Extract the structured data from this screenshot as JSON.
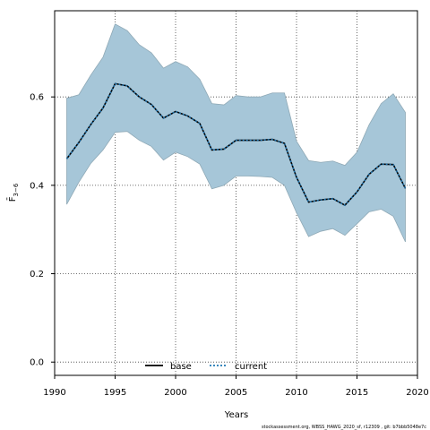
{
  "chart_data": {
    "type": "area",
    "xlabel": "Years",
    "ylabel": "F̄",
    "ylabel_subscript": "3−6",
    "xlim": [
      1990,
      2020
    ],
    "ylim": [
      -0.03,
      0.795
    ],
    "xticks": [
      1990,
      1995,
      2000,
      2005,
      2010,
      2015,
      2020
    ],
    "yticks": [
      0.0,
      0.2,
      0.4,
      0.6
    ],
    "ytick_labels": [
      "0.0",
      "0.2",
      "0.4",
      "0.6"
    ],
    "grid": true,
    "legend_position": "bottom",
    "x": [
      1991,
      1992,
      1993,
      1994,
      1995,
      1996,
      1997,
      1998,
      1999,
      2000,
      2001,
      2002,
      2003,
      2004,
      2005,
      2006,
      2007,
      2008,
      2009,
      2010,
      2011,
      2012,
      2013,
      2014,
      2015,
      2016,
      2017,
      2018,
      2019
    ],
    "band": {
      "upper": [
        0.597,
        0.605,
        0.65,
        0.69,
        0.765,
        0.75,
        0.718,
        0.7,
        0.665,
        0.68,
        0.668,
        0.64,
        0.585,
        0.582,
        0.603,
        0.6,
        0.6,
        0.609,
        0.609,
        0.5,
        0.456,
        0.452,
        0.455,
        0.445,
        0.475,
        0.537,
        0.585,
        0.607,
        0.565
      ],
      "lower": [
        0.357,
        0.407,
        0.45,
        0.48,
        0.52,
        0.522,
        0.502,
        0.488,
        0.457,
        0.475,
        0.465,
        0.448,
        0.392,
        0.4,
        0.421,
        0.421,
        0.42,
        0.418,
        0.4,
        0.338,
        0.284,
        0.296,
        0.302,
        0.287,
        0.313,
        0.34,
        0.346,
        0.33,
        0.272
      ],
      "color": "#a6c6d8",
      "edge": "#8fa9b6"
    },
    "series": [
      {
        "name": "base",
        "values": [
          0.46,
          0.497,
          0.538,
          0.575,
          0.63,
          0.625,
          0.6,
          0.583,
          0.552,
          0.567,
          0.557,
          0.54,
          0.48,
          0.482,
          0.502,
          0.502,
          0.502,
          0.504,
          0.495,
          0.418,
          0.362,
          0.367,
          0.37,
          0.355,
          0.385,
          0.425,
          0.448,
          0.447,
          0.393
        ],
        "color": "#000000",
        "style": "solid"
      },
      {
        "name": "current",
        "values": [
          0.46,
          0.497,
          0.538,
          0.575,
          0.63,
          0.625,
          0.6,
          0.583,
          0.552,
          0.567,
          0.557,
          0.54,
          0.48,
          0.482,
          0.502,
          0.502,
          0.502,
          0.504,
          0.495,
          0.418,
          0.362,
          0.367,
          0.37,
          0.355,
          0.385,
          0.425,
          0.448,
          0.447,
          0.393
        ],
        "color": "#1f77b4",
        "style": "dotted"
      }
    ],
    "legend": [
      {
        "label": "base",
        "color": "#000000",
        "style": "solid"
      },
      {
        "label": "current",
        "color": "#1f77b4",
        "style": "dotted"
      }
    ],
    "footer": "stockassessment.org,  WBSS_HAWG_2020_sf,  r12309 ,  git: b7bbb5048e7c"
  }
}
